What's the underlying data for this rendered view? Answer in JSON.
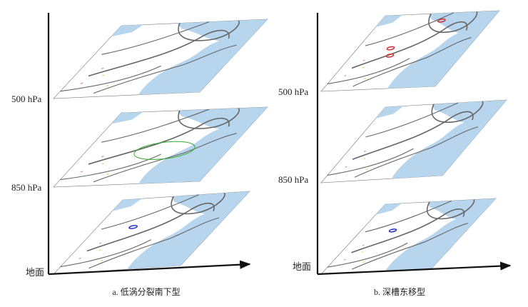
{
  "panels": [
    {
      "levels": [
        "500 hPa",
        "850 hPa",
        "地面"
      ],
      "caption": "a. 低涡分裂南下型"
    },
    {
      "levels": [
        "500 hPa",
        "850 hPa",
        "地面"
      ],
      "caption": "b. 深槽东移型"
    }
  ]
}
